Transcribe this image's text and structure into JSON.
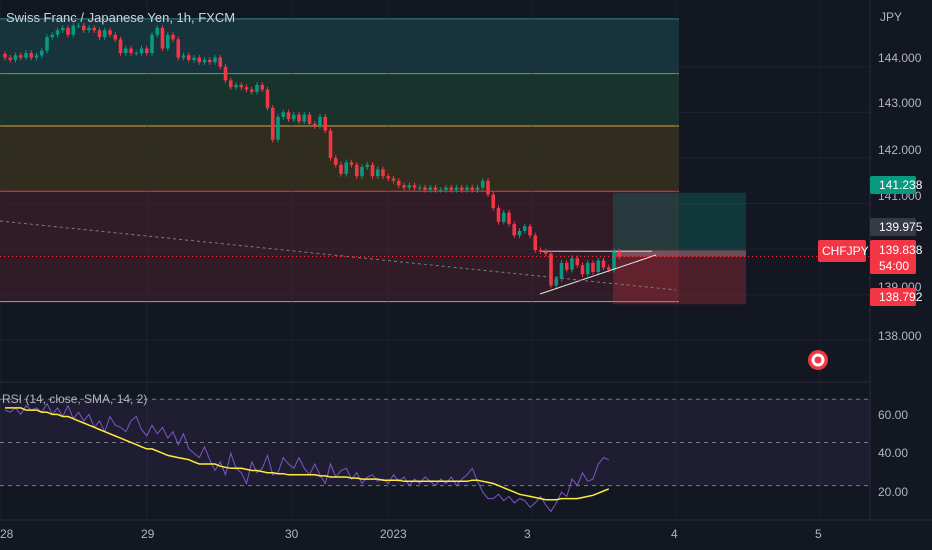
{
  "header": {
    "title": "Swiss Franc / Japanese Yen, 1h, FXCM"
  },
  "price_axis": {
    "unit": "JPY",
    "ticks": [
      "144.000",
      "143.000",
      "142.000",
      "138.000"
    ],
    "obscured_ticks": [
      "141.000",
      "139.000"
    ]
  },
  "tags": {
    "target": {
      "value": "141.238",
      "color": "#089981"
    },
    "entry": {
      "value": "139.975",
      "color": "#363a45"
    },
    "symbol": {
      "name": "CHFJPY",
      "price": "139.838",
      "countdown": "54:00",
      "color": "#f23645"
    },
    "stop": {
      "value": "138.792",
      "color": "#f23645"
    }
  },
  "rsi": {
    "label": "RSI (14, close, SMA, 14, 2)",
    "ticks": [
      "60.00",
      "40.00",
      "20.00"
    ],
    "line_color": "#7e57c2",
    "ma_color": "#ffeb3b"
  },
  "time_axis": {
    "ticks": [
      "28",
      "29",
      "30",
      "2023",
      "3",
      "4",
      "5"
    ]
  },
  "colors": {
    "up": "#089981",
    "down": "#f23645",
    "background": "#131722",
    "grid": "#2a2e39"
  },
  "chart_data": [
    {
      "type": "candlestick",
      "title": "Swiss Franc / Japanese Yen, 1h, FXCM",
      "ylabel": "JPY",
      "ylim": [
        137.35,
        145.2
      ],
      "x_ticks": [
        "28",
        "29",
        "30",
        "2023",
        "3",
        "4",
        "5"
      ],
      "fib_levels": [
        145.05,
        143.85,
        142.7,
        141.27,
        138.85
      ],
      "position": {
        "target": 141.238,
        "entry": 139.975,
        "stop": 138.792
      },
      "last_price": 139.838,
      "close": [
        144.2,
        144.15,
        144.25,
        144.2,
        144.3,
        144.2,
        144.25,
        144.35,
        144.65,
        144.7,
        144.8,
        144.85,
        144.7,
        144.9,
        144.9,
        144.8,
        144.85,
        144.8,
        144.65,
        144.8,
        144.7,
        144.6,
        144.3,
        144.4,
        144.3,
        144.3,
        144.4,
        144.3,
        144.7,
        144.85,
        144.4,
        144.7,
        144.6,
        144.2,
        144.25,
        144.15,
        144.2,
        144.1,
        144.15,
        144.1,
        144.2,
        144.0,
        143.7,
        143.55,
        143.6,
        143.55,
        143.5,
        143.45,
        143.6,
        143.5,
        143.1,
        142.4,
        142.9,
        143.0,
        142.85,
        142.95,
        142.8,
        142.95,
        142.75,
        142.7,
        142.9,
        142.6,
        142.0,
        141.85,
        141.65,
        141.9,
        141.85,
        141.6,
        141.8,
        141.85,
        141.6,
        141.75,
        141.6,
        141.55,
        141.5,
        141.4,
        141.35,
        141.4,
        141.35,
        141.35,
        141.3,
        141.35,
        141.3,
        141.3,
        141.35,
        141.3,
        141.35,
        141.3,
        141.35,
        141.3,
        141.35,
        141.5,
        141.2,
        140.9,
        140.6,
        140.8,
        140.55,
        140.3,
        140.4,
        140.5,
        140.3,
        139.98,
        139.95,
        139.9,
        139.2,
        139.35,
        139.7,
        139.55,
        139.8,
        139.65,
        139.45,
        139.7,
        139.5,
        139.75,
        139.6,
        139.55,
        139.95,
        139.84
      ]
    },
    {
      "type": "line",
      "title": "RSI (14, close, SMA, 14, 2)",
      "ylim": [
        15,
        78
      ],
      "y_ticks": [
        60,
        40,
        20
      ],
      "bands": [
        70,
        50,
        30
      ],
      "series": [
        {
          "name": "RSI",
          "values": [
            65,
            64,
            66,
            63,
            67,
            65,
            66,
            64,
            68,
            63,
            66,
            62,
            67,
            61,
            64,
            60,
            63,
            57,
            60,
            55,
            62,
            58,
            57,
            55,
            60,
            62,
            56,
            53,
            58,
            54,
            57,
            52,
            55,
            49,
            54,
            47,
            45,
            43,
            48,
            42,
            37,
            41,
            35,
            45,
            38,
            36,
            31,
            41,
            36,
            38,
            44,
            35,
            36,
            43,
            40,
            38,
            43,
            38,
            35,
            40,
            35,
            31,
            40,
            34,
            37,
            38,
            33,
            36,
            31,
            34,
            35,
            32,
            33,
            31,
            35,
            32,
            34,
            30,
            33,
            31,
            34,
            32,
            30,
            33,
            31,
            34,
            30,
            33,
            35,
            38,
            32,
            27,
            24,
            24,
            26,
            23,
            25,
            22,
            24,
            23,
            20,
            22,
            25,
            21,
            18,
            22,
            27,
            25,
            33,
            30,
            36,
            32,
            33,
            40,
            43,
            42
          ]
        },
        {
          "name": "RSI-based MA",
          "values": [
            66,
            66,
            66,
            66,
            65,
            65,
            65,
            64,
            64,
            63,
            63,
            62,
            62,
            61,
            60,
            59,
            58,
            57,
            56,
            55,
            54,
            53,
            52,
            51,
            50,
            49,
            48,
            47,
            47,
            46,
            45,
            44,
            43.5,
            43,
            42.5,
            42,
            41,
            40,
            40,
            40,
            40,
            39,
            38.5,
            38,
            38,
            38,
            37.5,
            37,
            37,
            36.5,
            36,
            36,
            35.5,
            35.5,
            35,
            35,
            35,
            35,
            35,
            35,
            34.5,
            34.5,
            34,
            34,
            34,
            34,
            33.5,
            33.5,
            33,
            33,
            33,
            33,
            32.5,
            32.5,
            32.5,
            32.5,
            32,
            32,
            32,
            32,
            32,
            32,
            32,
            32,
            32,
            32,
            32,
            32,
            32,
            32.5,
            32.5,
            32,
            31.5,
            31,
            30,
            29,
            28,
            27,
            26,
            25.5,
            25,
            24.5,
            24,
            23.5,
            23.5,
            23.5,
            24,
            24,
            24,
            24,
            24.5,
            25,
            25.5,
            26.5,
            27.5,
            28.5
          ]
        }
      ]
    }
  ]
}
